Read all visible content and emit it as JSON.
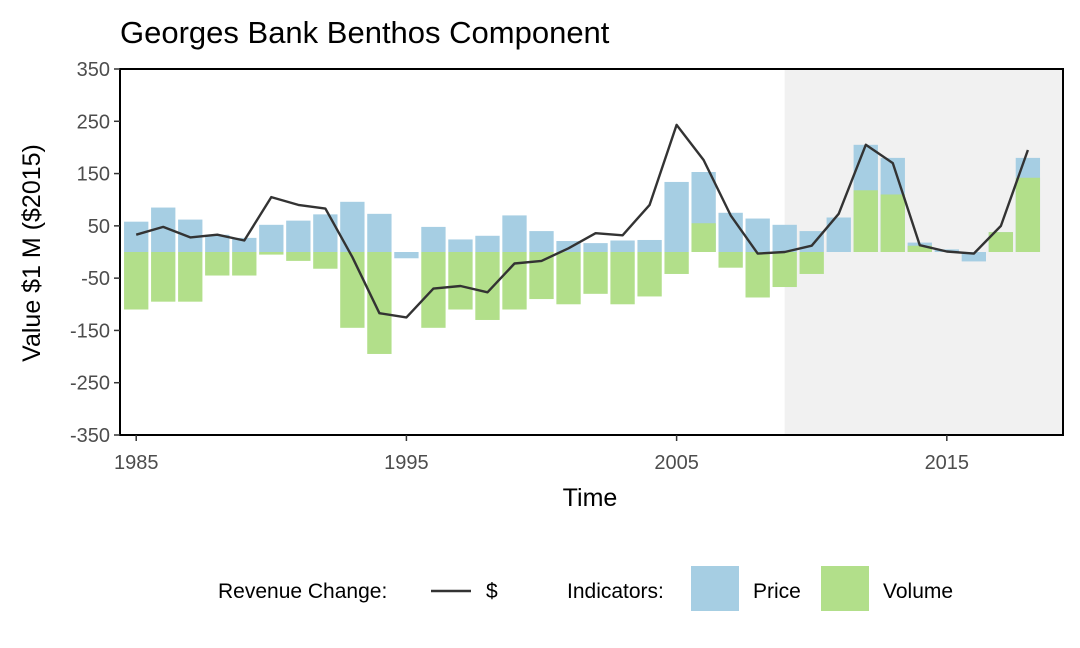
{
  "chart_data": {
    "type": "bar",
    "title": "Georges Bank Benthos Component",
    "xlabel": "Time",
    "ylabel": "Value $1 M ($2015)",
    "xlim": [
      1984.4,
      2019.3
    ],
    "ylim": [
      -350,
      350
    ],
    "x_ticks": [
      1985,
      1995,
      2005,
      2015
    ],
    "y_ticks": [
      350,
      250,
      150,
      50,
      -50,
      -150,
      -250,
      -350
    ],
    "shaded_region": {
      "from": 2009,
      "to": 2019.3,
      "color": "#f1f1f1"
    },
    "legend_position": "bottom",
    "legend": {
      "line_title": "Revenue Change:",
      "line_label": "$",
      "fill_title": "Indicators:",
      "fill_labels": [
        "Price",
        "Volume"
      ]
    },
    "colors": {
      "Price": "#a6cee3",
      "Volume": "#b2df8a",
      "line": "#333333",
      "panel_border": "#000000"
    },
    "x": [
      1985,
      1986,
      1987,
      1988,
      1989,
      1990,
      1991,
      1992,
      1993,
      1994,
      1995,
      1996,
      1997,
      1998,
      1999,
      2000,
      2001,
      2002,
      2003,
      2004,
      2005,
      2006,
      2007,
      2008,
      2009,
      2010,
      2011,
      2012,
      2013,
      2014,
      2015,
      2016,
      2017,
      2018
    ],
    "series": [
      {
        "name": "Price",
        "kind": "bar",
        "values": [
          58,
          85,
          62,
          33,
          27,
          52,
          60,
          72,
          96,
          73,
          -12,
          48,
          24,
          31,
          70,
          40,
          21,
          17,
          22,
          23,
          134,
          153,
          75,
          64,
          52,
          40,
          66,
          205,
          180,
          18,
          5,
          -18,
          38,
          180
        ]
      },
      {
        "name": "Volume",
        "kind": "bar",
        "values": [
          -110,
          -95,
          -95,
          -45,
          -45,
          -5,
          -17,
          -32,
          -145,
          -195,
          0,
          -145,
          -110,
          -130,
          -110,
          -90,
          -100,
          -80,
          -100,
          -85,
          -42,
          55,
          -30,
          -87,
          -67,
          -42,
          0,
          118,
          110,
          12,
          0,
          0,
          38,
          142
        ]
      },
      {
        "name": "$",
        "kind": "line",
        "values": [
          33,
          48,
          28,
          33,
          22,
          105,
          90,
          83,
          -10,
          -117,
          -125,
          -70,
          -65,
          -77,
          -22,
          -17,
          7,
          36,
          32,
          90,
          243,
          176,
          70,
          -3,
          0,
          12,
          73,
          205,
          170,
          13,
          1,
          -3,
          50,
          195
        ]
      }
    ]
  }
}
